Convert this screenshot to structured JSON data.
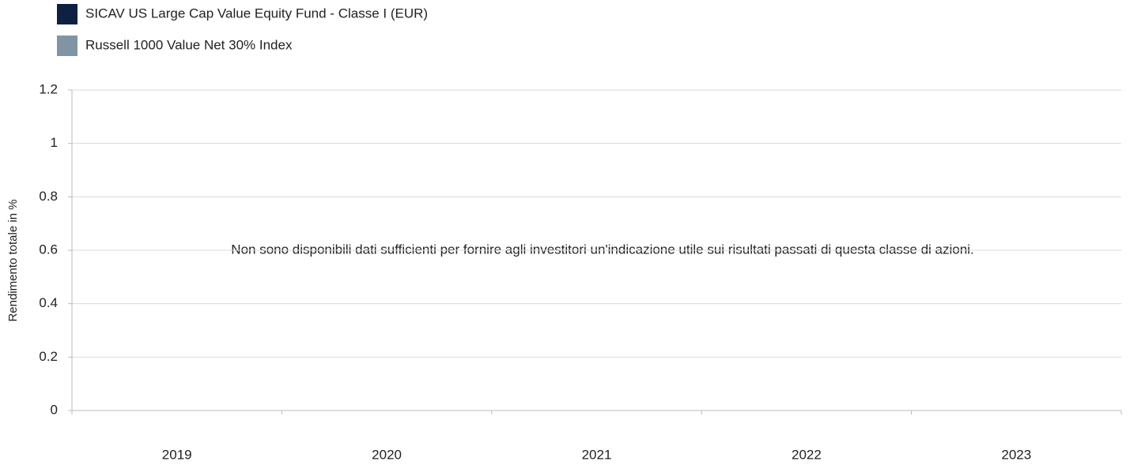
{
  "chart_data": {
    "type": "bar",
    "categories": [
      "2019",
      "2020",
      "2021",
      "2022",
      "2023"
    ],
    "series": [
      {
        "name": "SICAV US Large Cap Value Equity Fund - Classe I (EUR)",
        "color": "#0e2141",
        "values": [
          null,
          null,
          null,
          null,
          null
        ]
      },
      {
        "name": "Russell 1000 Value Net 30% Index",
        "color": "#8094a4",
        "values": [
          null,
          null,
          null,
          null,
          null
        ]
      }
    ],
    "ylabel": "Rendimento totale in %",
    "annotation": "Non sono disponibili dati sufficienti per fornire agli investitori un'indicazione utile sui risultati passati di questa classe di azioni.",
    "ylim": [
      0,
      1.2
    ],
    "yticks": [
      0,
      0.2,
      0.4,
      0.6,
      0.8,
      1,
      1.2
    ],
    "grid": true
  }
}
